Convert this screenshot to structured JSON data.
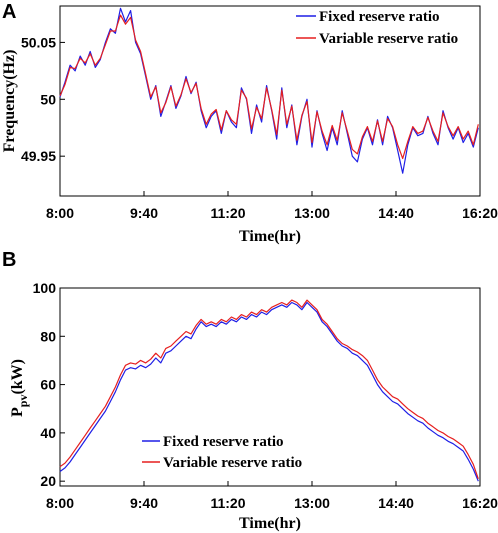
{
  "colors": {
    "fixed": "#1f1fe6",
    "variable": "#e61f1f"
  },
  "chart_data": [
    {
      "panel_label": "A",
      "type": "line",
      "xlabel": "Time(hr)",
      "ylabel": "Frequency(Hz)",
      "xlim": [
        8.0,
        16.3333
      ],
      "ylim": [
        49.915,
        50.082
      ],
      "x_ticks": [
        8.0,
        9.6667,
        11.3333,
        13.0,
        14.6667,
        16.3333
      ],
      "x_tick_labels": [
        "8:00",
        "9:40",
        "11:20",
        "13:00",
        "14:40",
        "16:20"
      ],
      "y_ticks": [
        49.95,
        50.0,
        50.05
      ],
      "y_tick_labels": [
        "49.95",
        "50",
        "50.05"
      ],
      "legend_position": "top-right",
      "x": [
        8.0,
        8.1,
        8.2,
        8.3,
        8.4,
        8.5,
        8.6,
        8.7,
        8.8,
        8.9,
        9.0,
        9.1,
        9.2,
        9.3,
        9.4,
        9.5,
        9.6,
        9.7,
        9.8,
        9.9,
        10.0,
        10.1,
        10.2,
        10.3,
        10.4,
        10.5,
        10.6,
        10.7,
        10.8,
        10.9,
        11.0,
        11.1,
        11.2,
        11.3,
        11.4,
        11.5,
        11.6,
        11.7,
        11.8,
        11.9,
        12.0,
        12.1,
        12.2,
        12.3,
        12.4,
        12.5,
        12.6,
        12.7,
        12.8,
        12.9,
        13.0,
        13.1,
        13.2,
        13.3,
        13.4,
        13.5,
        13.6,
        13.7,
        13.8,
        13.9,
        14.0,
        14.1,
        14.2,
        14.3,
        14.4,
        14.5,
        14.6,
        14.7,
        14.8,
        14.9,
        15.0,
        15.1,
        15.2,
        15.3,
        15.4,
        15.5,
        15.6,
        15.7,
        15.8,
        15.9,
        16.0,
        16.1,
        16.2,
        16.3
      ],
      "series": [
        {
          "name": "Fixed reserve ratio",
          "color_key": "fixed",
          "values": [
            50.002,
            50.015,
            50.03,
            50.025,
            50.038,
            50.03,
            50.042,
            50.028,
            50.035,
            50.05,
            50.062,
            50.058,
            50.08,
            50.068,
            50.078,
            50.05,
            50.04,
            50.02,
            50.0,
            50.012,
            49.985,
            49.998,
            50.012,
            49.992,
            50.003,
            50.02,
            50.005,
            50.015,
            49.99,
            49.975,
            49.985,
            49.99,
            49.97,
            49.99,
            49.98,
            49.975,
            50.01,
            50.0,
            49.97,
            49.995,
            49.98,
            50.012,
            49.99,
            49.965,
            50.01,
            49.975,
            49.995,
            49.96,
            49.985,
            50.0,
            49.958,
            49.99,
            49.97,
            49.955,
            49.975,
            49.96,
            49.99,
            49.97,
            49.95,
            49.945,
            49.965,
            49.975,
            49.96,
            49.982,
            49.96,
            49.985,
            49.975,
            49.955,
            49.935,
            49.96,
            49.975,
            49.968,
            49.97,
            49.985,
            49.97,
            49.96,
            49.99,
            49.975,
            49.965,
            49.975,
            49.962,
            49.97,
            49.958,
            49.975
          ]
        },
        {
          "name": "Variable reserve ratio",
          "color_key": "variable",
          "values": [
            50.003,
            50.013,
            50.028,
            50.027,
            50.036,
            50.032,
            50.04,
            50.03,
            50.036,
            50.048,
            50.06,
            50.06,
            50.074,
            50.066,
            50.072,
            50.052,
            50.042,
            50.022,
            50.002,
            50.011,
            49.988,
            49.997,
            50.011,
            49.994,
            50.004,
            50.018,
            50.006,
            50.014,
            49.992,
            49.978,
            49.987,
            49.991,
            49.973,
            49.99,
            49.982,
            49.978,
            50.008,
            50.001,
            49.974,
            49.993,
            49.983,
            50.01,
            49.991,
            49.969,
            50.008,
            49.978,
            49.994,
            49.964,
            49.986,
            49.998,
            49.962,
            49.989,
            49.972,
            49.96,
            49.977,
            49.964,
            49.988,
            49.972,
            49.956,
            49.952,
            49.967,
            49.976,
            49.963,
            49.981,
            49.963,
            49.983,
            49.976,
            49.96,
            49.948,
            49.963,
            49.976,
            49.97,
            49.972,
            49.984,
            49.972,
            49.963,
            49.988,
            49.976,
            49.968,
            49.976,
            49.965,
            49.972,
            49.96,
            49.978
          ]
        }
      ]
    },
    {
      "panel_label": "B",
      "type": "line",
      "xlabel": "Time(hr)",
      "ylabel_main": "P",
      "ylabel_sub": "pv",
      "ylabel_unit": "(kW)",
      "xlim": [
        8.0,
        16.3333
      ],
      "ylim": [
        18,
        100
      ],
      "x_ticks": [
        8.0,
        9.6667,
        11.3333,
        13.0,
        14.6667,
        16.3333
      ],
      "x_tick_labels": [
        "8:00",
        "9:40",
        "11:20",
        "13:00",
        "14:40",
        "16:20"
      ],
      "y_ticks": [
        20,
        40,
        60,
        80,
        100
      ],
      "y_tick_labels": [
        "20",
        "40",
        "60",
        "80",
        "100"
      ],
      "legend_position": "bottom-center",
      "x": [
        8.0,
        8.1,
        8.2,
        8.3,
        8.4,
        8.5,
        8.6,
        8.7,
        8.8,
        8.9,
        9.0,
        9.1,
        9.2,
        9.3,
        9.4,
        9.5,
        9.6,
        9.7,
        9.8,
        9.9,
        10.0,
        10.1,
        10.2,
        10.3,
        10.4,
        10.5,
        10.6,
        10.7,
        10.8,
        10.9,
        11.0,
        11.1,
        11.2,
        11.3,
        11.4,
        11.5,
        11.6,
        11.7,
        11.8,
        11.9,
        12.0,
        12.1,
        12.2,
        12.3,
        12.4,
        12.5,
        12.6,
        12.7,
        12.8,
        12.9,
        13.0,
        13.1,
        13.2,
        13.3,
        13.4,
        13.5,
        13.6,
        13.7,
        13.8,
        13.9,
        14.0,
        14.1,
        14.2,
        14.3,
        14.4,
        14.5,
        14.6,
        14.7,
        14.8,
        14.9,
        15.0,
        15.1,
        15.2,
        15.3,
        15.4,
        15.5,
        15.6,
        15.7,
        15.8,
        15.9,
        16.0,
        16.1,
        16.2,
        16.3
      ],
      "series": [
        {
          "name": "Fixed reserve ratio",
          "color_key": "fixed",
          "values": [
            24,
            25.5,
            28,
            31,
            34,
            37,
            40,
            43,
            46,
            49,
            53,
            57,
            62,
            66,
            67,
            66.5,
            68,
            67,
            68.5,
            71,
            69,
            73,
            74,
            76,
            78,
            80,
            79,
            83,
            86,
            84,
            85,
            84,
            86,
            85,
            87,
            86,
            88,
            87,
            89,
            88,
            90,
            89,
            91,
            92,
            93,
            92,
            94,
            93,
            91,
            94,
            92,
            90,
            86,
            84,
            81,
            78,
            76,
            75,
            73,
            72,
            70,
            68,
            64,
            60,
            57,
            55,
            53,
            52,
            50,
            48,
            46.5,
            45,
            44,
            42,
            40.5,
            39,
            38,
            36.5,
            35.5,
            34,
            32.5,
            29,
            25,
            20
          ]
        },
        {
          "name": "Variable reserve ratio",
          "color_key": "variable",
          "values": [
            26,
            27.5,
            30,
            33,
            36,
            39,
            42,
            45,
            48,
            51,
            55,
            59,
            64,
            68,
            69,
            68.5,
            70,
            69,
            70.5,
            73,
            71,
            75,
            76,
            78,
            80,
            82,
            81,
            84.5,
            87,
            85,
            86,
            85,
            87,
            86,
            88,
            87,
            89,
            88,
            90,
            89,
            91,
            90,
            92,
            93,
            94,
            93,
            95,
            94,
            92,
            95,
            93,
            91,
            87,
            85,
            82,
            79,
            77,
            76,
            74.5,
            73.5,
            72,
            70,
            66,
            62,
            59,
            57,
            55,
            54,
            52,
            50,
            48.5,
            47,
            46,
            44,
            42.5,
            41,
            40,
            38.5,
            37.5,
            36,
            34.5,
            31,
            27,
            21
          ]
        }
      ]
    }
  ]
}
